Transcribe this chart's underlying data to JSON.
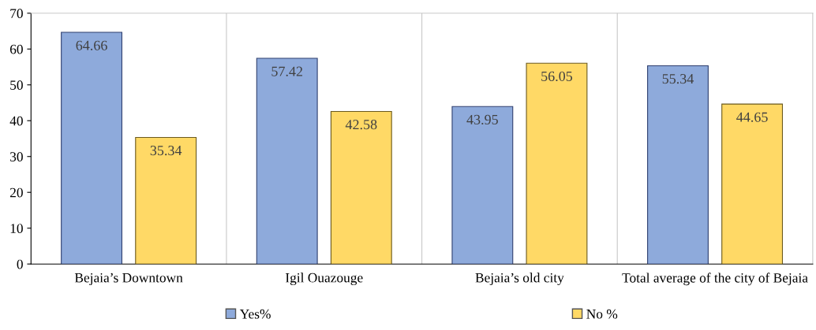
{
  "chart_data": {
    "type": "bar",
    "categories": [
      "Bejaia’s Downtown",
      "Igil Ouazouge",
      "Bejaia’s old city",
      "Total average of the city of Bejaia"
    ],
    "series": [
      {
        "name": "Yes%",
        "color": "#8eaadb",
        "values": [
          64.66,
          57.42,
          43.95,
          55.34
        ]
      },
      {
        "name": "No %",
        "color": "#ffd966",
        "values": [
          35.34,
          42.58,
          56.05,
          44.65
        ]
      }
    ],
    "ylim": [
      0,
      70
    ],
    "yticks": [
      0,
      10,
      20,
      30,
      40,
      50,
      60,
      70
    ],
    "grid": "x",
    "legend": "bottom",
    "data_labels": true
  }
}
